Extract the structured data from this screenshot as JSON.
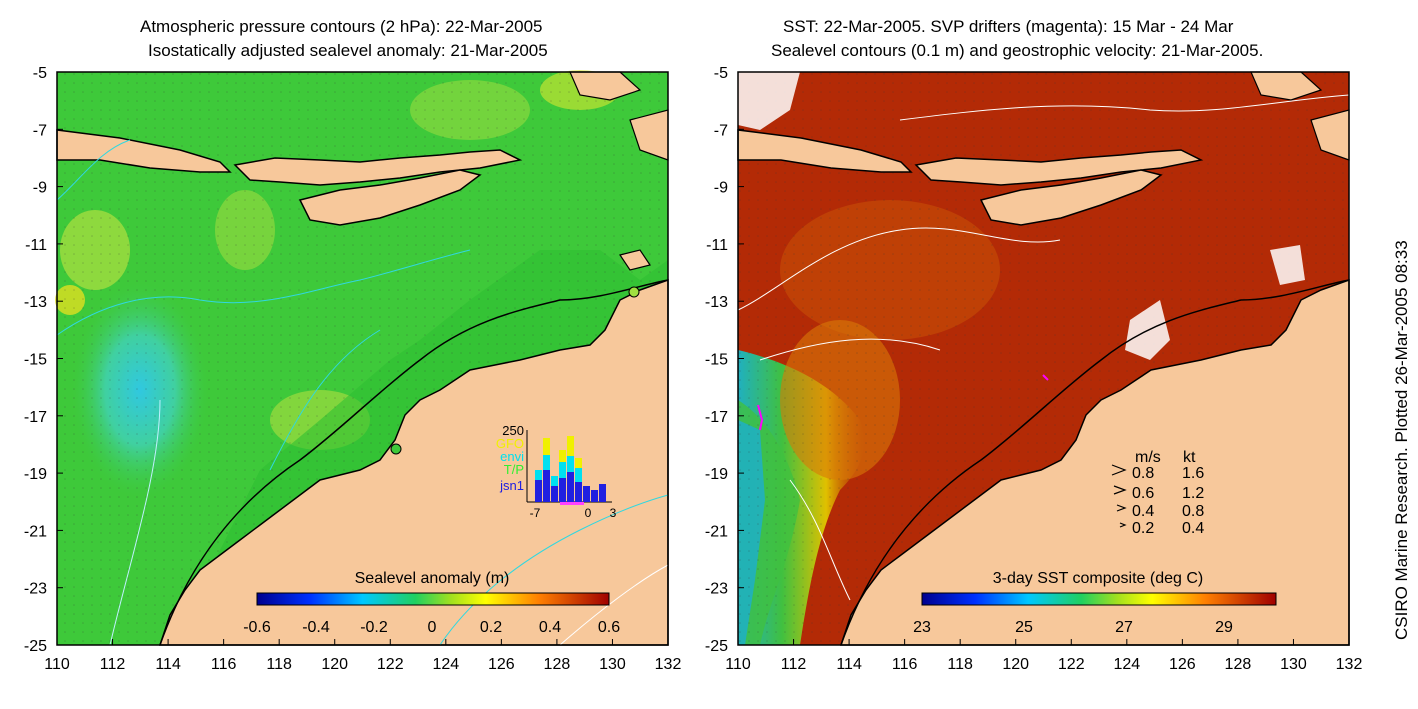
{
  "left_panel": {
    "title_line1": "Atmospheric pressure contours (2 hPa): 22-Mar-2005",
    "title_line2": "Isostatically adjusted sealevel anomaly: 21-Mar-2005",
    "colorbar_label": "Sealevel anomaly (m)",
    "colorbar_ticks": [
      "-0.6",
      "-0.4",
      "-0.2",
      "0",
      "0.2",
      "0.4",
      "0.6"
    ],
    "histogram": {
      "ymax_label": "250",
      "legend": [
        {
          "name": "GFO",
          "color": "#f0f000"
        },
        {
          "name": "envi",
          "color": "#00e0f0"
        },
        {
          "name": "T/P",
          "color": "#30f030"
        },
        {
          "name": "jsn1",
          "color": "#2020e0"
        }
      ],
      "x_ticks": [
        "-7",
        "0",
        "3"
      ]
    }
  },
  "right_panel": {
    "title_line1": "SST: 22-Mar-2005. SVP drifters (magenta): 15 Mar - 24 Mar",
    "title_line2": "Sealevel contours (0.1 m) and geostrophic velocity: 21-Mar-2005.",
    "colorbar_label": "3-day SST composite (deg C)",
    "colorbar_ticks": [
      "23",
      "25",
      "27",
      "29"
    ],
    "velocity_legend": {
      "header_ms": "m/s",
      "header_kt": "kt",
      "rows": [
        {
          "ms": "0.8",
          "kt": "1.6"
        },
        {
          "ms": "0.6",
          "kt": "1.2"
        },
        {
          "ms": "0.4",
          "kt": "0.8"
        },
        {
          "ms": "0.2",
          "kt": "0.4"
        }
      ]
    }
  },
  "axes": {
    "x_ticks": [
      "110",
      "112",
      "114",
      "116",
      "118",
      "120",
      "122",
      "124",
      "126",
      "128",
      "130",
      "132"
    ],
    "y_ticks": [
      "-5",
      "-7",
      "-9",
      "-11",
      "-13",
      "-15",
      "-17",
      "-19",
      "-21",
      "-23",
      "-25"
    ]
  },
  "side_caption": "CSIRO Marine Research. Plotted 26-Mar-2005 08:33",
  "colors": {
    "land": "#f7c89b",
    "ocean_anomaly": "#3ec93a",
    "ocean_sst": "#b32a06"
  }
}
